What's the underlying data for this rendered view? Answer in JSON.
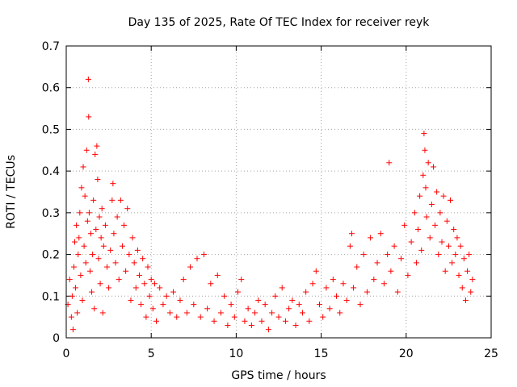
{
  "chart_data": {
    "type": "scatter",
    "title": "Day 135 of 2025, Rate Of TEC Index for receiver reyk",
    "xlabel": "GPS time / hours",
    "ylabel": "ROTI / TECUs",
    "xlim": [
      0,
      25
    ],
    "ylim": [
      0,
      0.7
    ],
    "xticks": [
      0,
      5,
      10,
      15,
      20,
      25
    ],
    "xtick_labels": [
      "0",
      "5",
      "10",
      "15",
      "20",
      "25"
    ],
    "yticks": [
      0,
      0.1,
      0.2,
      0.3,
      0.4,
      0.5,
      0.6,
      0.7
    ],
    "ytick_labels": [
      "0",
      "0.1",
      "0.2",
      "0.3",
      "0.4",
      "0.5",
      "0.6",
      "0.7"
    ],
    "grid": true,
    "marker": "+",
    "marker_color": "#ff0000",
    "series": [
      {
        "name": "ROTI",
        "points": [
          [
            0.1,
            0.08
          ],
          [
            0.2,
            0.14
          ],
          [
            0.3,
            0.05
          ],
          [
            0.35,
            0.1
          ],
          [
            0.4,
            0.02
          ],
          [
            0.45,
            0.17
          ],
          [
            0.5,
            0.23
          ],
          [
            0.55,
            0.12
          ],
          [
            0.6,
            0.27
          ],
          [
            0.65,
            0.06
          ],
          [
            0.7,
            0.2
          ],
          [
            0.75,
            0.24
          ],
          [
            0.8,
            0.3
          ],
          [
            0.85,
            0.15
          ],
          [
            0.9,
            0.36
          ],
          [
            0.95,
            0.09
          ],
          [
            1.0,
            0.41
          ],
          [
            1.05,
            0.22
          ],
          [
            1.1,
            0.34
          ],
          [
            1.15,
            0.18
          ],
          [
            1.2,
            0.45
          ],
          [
            1.25,
            0.28
          ],
          [
            1.3,
            0.62
          ],
          [
            1.32,
            0.53
          ],
          [
            1.35,
            0.3
          ],
          [
            1.4,
            0.16
          ],
          [
            1.45,
            0.25
          ],
          [
            1.5,
            0.11
          ],
          [
            1.55,
            0.2
          ],
          [
            1.6,
            0.33
          ],
          [
            1.65,
            0.07
          ],
          [
            1.7,
            0.44
          ],
          [
            1.75,
            0.26
          ],
          [
            1.8,
            0.46
          ],
          [
            1.85,
            0.38
          ],
          [
            1.9,
            0.19
          ],
          [
            1.95,
            0.29
          ],
          [
            2.0,
            0.13
          ],
          [
            2.05,
            0.24
          ],
          [
            2.1,
            0.31
          ],
          [
            2.15,
            0.06
          ],
          [
            2.2,
            0.22
          ],
          [
            2.3,
            0.27
          ],
          [
            2.4,
            0.17
          ],
          [
            2.5,
            0.12
          ],
          [
            2.6,
            0.21
          ],
          [
            2.7,
            0.33
          ],
          [
            2.75,
            0.37
          ],
          [
            2.8,
            0.25
          ],
          [
            2.9,
            0.18
          ],
          [
            3.0,
            0.29
          ],
          [
            3.1,
            0.14
          ],
          [
            3.2,
            0.33
          ],
          [
            3.3,
            0.22
          ],
          [
            3.4,
            0.27
          ],
          [
            3.5,
            0.16
          ],
          [
            3.6,
            0.31
          ],
          [
            3.7,
            0.2
          ],
          [
            3.8,
            0.09
          ],
          [
            3.9,
            0.24
          ],
          [
            4.0,
            0.18
          ],
          [
            4.1,
            0.12
          ],
          [
            4.2,
            0.21
          ],
          [
            4.3,
            0.15
          ],
          [
            4.4,
            0.08
          ],
          [
            4.5,
            0.19
          ],
          [
            4.6,
            0.13
          ],
          [
            4.7,
            0.05
          ],
          [
            4.8,
            0.17
          ],
          [
            4.9,
            0.1
          ],
          [
            5.0,
            0.14
          ],
          [
            5.1,
            0.07
          ],
          [
            5.2,
            0.13
          ],
          [
            5.3,
            0.04
          ],
          [
            5.5,
            0.12
          ],
          [
            5.7,
            0.08
          ],
          [
            5.9,
            0.1
          ],
          [
            6.1,
            0.06
          ],
          [
            6.3,
            0.11
          ],
          [
            6.5,
            0.05
          ],
          [
            6.7,
            0.09
          ],
          [
            6.9,
            0.14
          ],
          [
            7.1,
            0.06
          ],
          [
            7.3,
            0.17
          ],
          [
            7.5,
            0.08
          ],
          [
            7.7,
            0.19
          ],
          [
            7.9,
            0.05
          ],
          [
            8.1,
            0.2
          ],
          [
            8.3,
            0.07
          ],
          [
            8.5,
            0.13
          ],
          [
            8.7,
            0.04
          ],
          [
            8.9,
            0.15
          ],
          [
            9.1,
            0.06
          ],
          [
            9.3,
            0.1
          ],
          [
            9.5,
            0.03
          ],
          [
            9.7,
            0.08
          ],
          [
            9.9,
            0.05
          ],
          [
            10.1,
            0.11
          ],
          [
            10.3,
            0.14
          ],
          [
            10.5,
            0.04
          ],
          [
            10.7,
            0.07
          ],
          [
            10.9,
            0.03
          ],
          [
            11.1,
            0.06
          ],
          [
            11.3,
            0.09
          ],
          [
            11.5,
            0.04
          ],
          [
            11.7,
            0.08
          ],
          [
            11.9,
            0.02
          ],
          [
            12.1,
            0.06
          ],
          [
            12.3,
            0.1
          ],
          [
            12.5,
            0.05
          ],
          [
            12.7,
            0.12
          ],
          [
            12.9,
            0.04
          ],
          [
            13.1,
            0.07
          ],
          [
            13.3,
            0.09
          ],
          [
            13.5,
            0.03
          ],
          [
            13.7,
            0.08
          ],
          [
            13.9,
            0.06
          ],
          [
            14.1,
            0.11
          ],
          [
            14.3,
            0.04
          ],
          [
            14.5,
            0.13
          ],
          [
            14.7,
            0.16
          ],
          [
            14.9,
            0.08
          ],
          [
            15.1,
            0.05
          ],
          [
            15.3,
            0.12
          ],
          [
            15.5,
            0.07
          ],
          [
            15.7,
            0.14
          ],
          [
            15.9,
            0.1
          ],
          [
            16.1,
            0.06
          ],
          [
            16.3,
            0.13
          ],
          [
            16.5,
            0.09
          ],
          [
            16.7,
            0.22
          ],
          [
            16.8,
            0.25
          ],
          [
            16.9,
            0.12
          ],
          [
            17.1,
            0.17
          ],
          [
            17.3,
            0.08
          ],
          [
            17.5,
            0.2
          ],
          [
            17.7,
            0.11
          ],
          [
            17.9,
            0.24
          ],
          [
            18.1,
            0.14
          ],
          [
            18.3,
            0.18
          ],
          [
            18.5,
            0.25
          ],
          [
            18.7,
            0.13
          ],
          [
            18.9,
            0.2
          ],
          [
            19.0,
            0.42
          ],
          [
            19.1,
            0.16
          ],
          [
            19.3,
            0.22
          ],
          [
            19.5,
            0.11
          ],
          [
            19.7,
            0.19
          ],
          [
            19.9,
            0.27
          ],
          [
            20.1,
            0.15
          ],
          [
            20.3,
            0.23
          ],
          [
            20.5,
            0.3
          ],
          [
            20.6,
            0.18
          ],
          [
            20.7,
            0.26
          ],
          [
            20.8,
            0.34
          ],
          [
            20.9,
            0.21
          ],
          [
            21.0,
            0.39
          ],
          [
            21.05,
            0.49
          ],
          [
            21.1,
            0.45
          ],
          [
            21.15,
            0.36
          ],
          [
            21.2,
            0.29
          ],
          [
            21.3,
            0.42
          ],
          [
            21.4,
            0.24
          ],
          [
            21.5,
            0.32
          ],
          [
            21.6,
            0.41
          ],
          [
            21.7,
            0.27
          ],
          [
            21.8,
            0.35
          ],
          [
            21.9,
            0.2
          ],
          [
            22.0,
            0.3
          ],
          [
            22.1,
            0.23
          ],
          [
            22.2,
            0.34
          ],
          [
            22.3,
            0.16
          ],
          [
            22.4,
            0.28
          ],
          [
            22.5,
            0.22
          ],
          [
            22.6,
            0.33
          ],
          [
            22.7,
            0.18
          ],
          [
            22.8,
            0.26
          ],
          [
            22.9,
            0.2
          ],
          [
            23.0,
            0.24
          ],
          [
            23.1,
            0.15
          ],
          [
            23.2,
            0.22
          ],
          [
            23.3,
            0.12
          ],
          [
            23.4,
            0.19
          ],
          [
            23.5,
            0.09
          ],
          [
            23.6,
            0.16
          ],
          [
            23.7,
            0.2
          ],
          [
            23.8,
            0.11
          ],
          [
            23.9,
            0.14
          ]
        ]
      }
    ]
  }
}
